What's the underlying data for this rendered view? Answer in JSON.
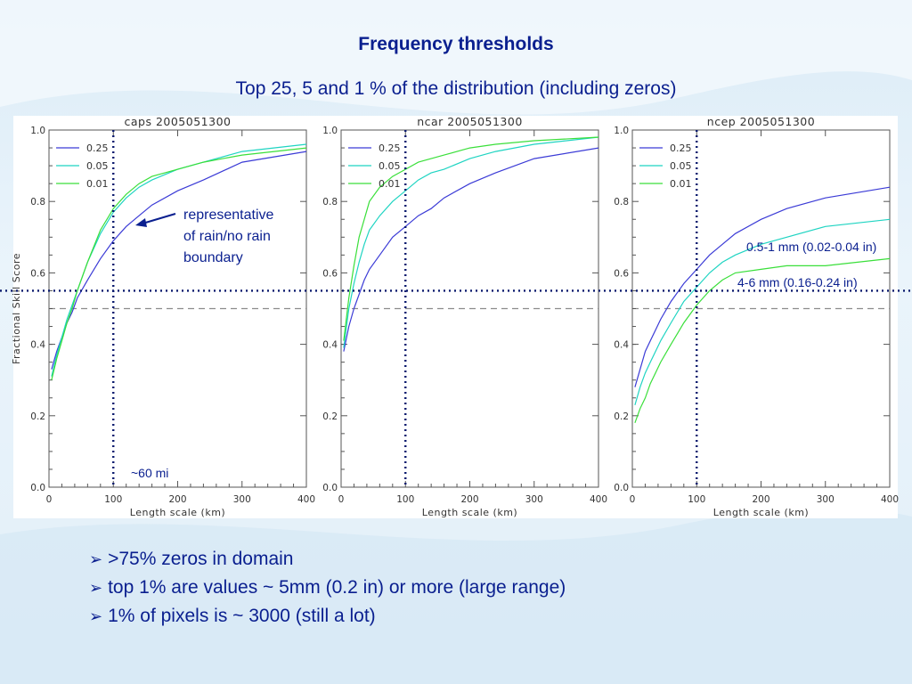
{
  "slide": {
    "title": "Frequency thresholds",
    "subtitle": "Top 25, 5 and 1 % of the distribution (including zeros)",
    "bullets": [
      ">75% zeros in domain",
      "top 1% are values ~ 5mm (0.2 in) or more (large range)",
      "1% of pixels is ~ 3000 (still a lot)"
    ]
  },
  "colors": {
    "series_0.25": "#3b3bd6",
    "series_0.05": "#1fd4c2",
    "series_0.01": "#3adf3a",
    "annotation_text": "#0a1f8f",
    "reference_dotted": "#0a1a6e",
    "reference_dashed": "#8c8c8c"
  },
  "annotations": {
    "caps_arrow_text": [
      "representative",
      "of rain/no rain",
      "boundary"
    ],
    "caps_scale_note": "~60 mi",
    "ncep_label_upper": "0.5-1 mm (0.02-0.04 in)",
    "ncep_label_lower": "4-6 mm (0.16-0.24 in)"
  },
  "reference_lines": {
    "vertical_dotted_x_km": 100,
    "horizontal_dotted_y": 0.55,
    "horizontal_dashed_y": 0.5
  },
  "chart_data": [
    {
      "type": "line",
      "title": "caps 2005051300",
      "xlabel": "Length scale (km)",
      "ylabel": "Fractional Skill Score",
      "xlim": [
        0,
        400
      ],
      "ylim": [
        0,
        1.0
      ],
      "xticks": [
        0,
        100,
        200,
        300,
        400
      ],
      "yticks": [
        "0.0",
        "0.2",
        "0.4",
        "0.6",
        "0.8",
        "1.0"
      ],
      "legend": "top-left",
      "x": [
        4,
        12,
        20,
        28,
        36,
        44,
        60,
        80,
        100,
        120,
        140,
        160,
        200,
        240,
        300,
        400
      ],
      "series": [
        {
          "name": "0.25",
          "values": [
            0.33,
            0.38,
            0.42,
            0.46,
            0.49,
            0.53,
            0.58,
            0.64,
            0.69,
            0.73,
            0.76,
            0.79,
            0.83,
            0.86,
            0.91,
            0.94
          ]
        },
        {
          "name": "0.05",
          "values": [
            0.31,
            0.37,
            0.42,
            0.47,
            0.51,
            0.55,
            0.63,
            0.71,
            0.77,
            0.81,
            0.84,
            0.86,
            0.89,
            0.91,
            0.94,
            0.96
          ]
        },
        {
          "name": "0.01",
          "values": [
            0.3,
            0.36,
            0.41,
            0.46,
            0.5,
            0.55,
            0.63,
            0.72,
            0.78,
            0.82,
            0.85,
            0.87,
            0.89,
            0.91,
            0.93,
            0.95
          ]
        }
      ]
    },
    {
      "type": "line",
      "title": "ncar 2005051300",
      "xlabel": "Length scale (km)",
      "ylabel": "",
      "xlim": [
        0,
        400
      ],
      "ylim": [
        0,
        1.0
      ],
      "xticks": [
        0,
        100,
        200,
        300,
        400
      ],
      "yticks": [
        "0.0",
        "0.2",
        "0.4",
        "0.6",
        "0.8",
        "1.0"
      ],
      "legend": "top-left",
      "x": [
        4,
        12,
        20,
        28,
        36,
        44,
        60,
        80,
        100,
        120,
        140,
        160,
        200,
        240,
        300,
        400
      ],
      "series": [
        {
          "name": "0.25",
          "values": [
            0.38,
            0.45,
            0.5,
            0.54,
            0.58,
            0.61,
            0.65,
            0.7,
            0.73,
            0.76,
            0.78,
            0.81,
            0.85,
            0.88,
            0.92,
            0.95
          ]
        },
        {
          "name": "0.05",
          "values": [
            0.39,
            0.5,
            0.57,
            0.63,
            0.68,
            0.72,
            0.76,
            0.8,
            0.83,
            0.86,
            0.88,
            0.89,
            0.92,
            0.94,
            0.96,
            0.98
          ]
        },
        {
          "name": "0.01",
          "values": [
            0.41,
            0.53,
            0.62,
            0.7,
            0.75,
            0.8,
            0.84,
            0.87,
            0.89,
            0.91,
            0.92,
            0.93,
            0.95,
            0.96,
            0.97,
            0.98
          ]
        }
      ]
    },
    {
      "type": "line",
      "title": "ncep 2005051300",
      "xlabel": "Length scale (km)",
      "ylabel": "",
      "xlim": [
        0,
        400
      ],
      "ylim": [
        0,
        1.0
      ],
      "xticks": [
        0,
        100,
        200,
        300,
        400
      ],
      "yticks": [
        "0.0",
        "0.2",
        "0.4",
        "0.6",
        "0.8",
        "1.0"
      ],
      "legend": "top-left",
      "x": [
        4,
        12,
        20,
        28,
        36,
        44,
        60,
        80,
        100,
        120,
        140,
        160,
        200,
        240,
        300,
        400
      ],
      "series": [
        {
          "name": "0.25",
          "values": [
            0.28,
            0.33,
            0.38,
            0.41,
            0.44,
            0.47,
            0.52,
            0.57,
            0.61,
            0.65,
            0.68,
            0.71,
            0.75,
            0.78,
            0.81,
            0.84
          ]
        },
        {
          "name": "0.05",
          "values": [
            0.23,
            0.28,
            0.32,
            0.35,
            0.38,
            0.41,
            0.46,
            0.52,
            0.56,
            0.6,
            0.63,
            0.65,
            0.68,
            0.7,
            0.73,
            0.75
          ]
        },
        {
          "name": "0.01",
          "values": [
            0.18,
            0.22,
            0.25,
            0.29,
            0.32,
            0.35,
            0.4,
            0.46,
            0.51,
            0.55,
            0.58,
            0.6,
            0.61,
            0.62,
            0.62,
            0.64
          ]
        }
      ]
    }
  ]
}
